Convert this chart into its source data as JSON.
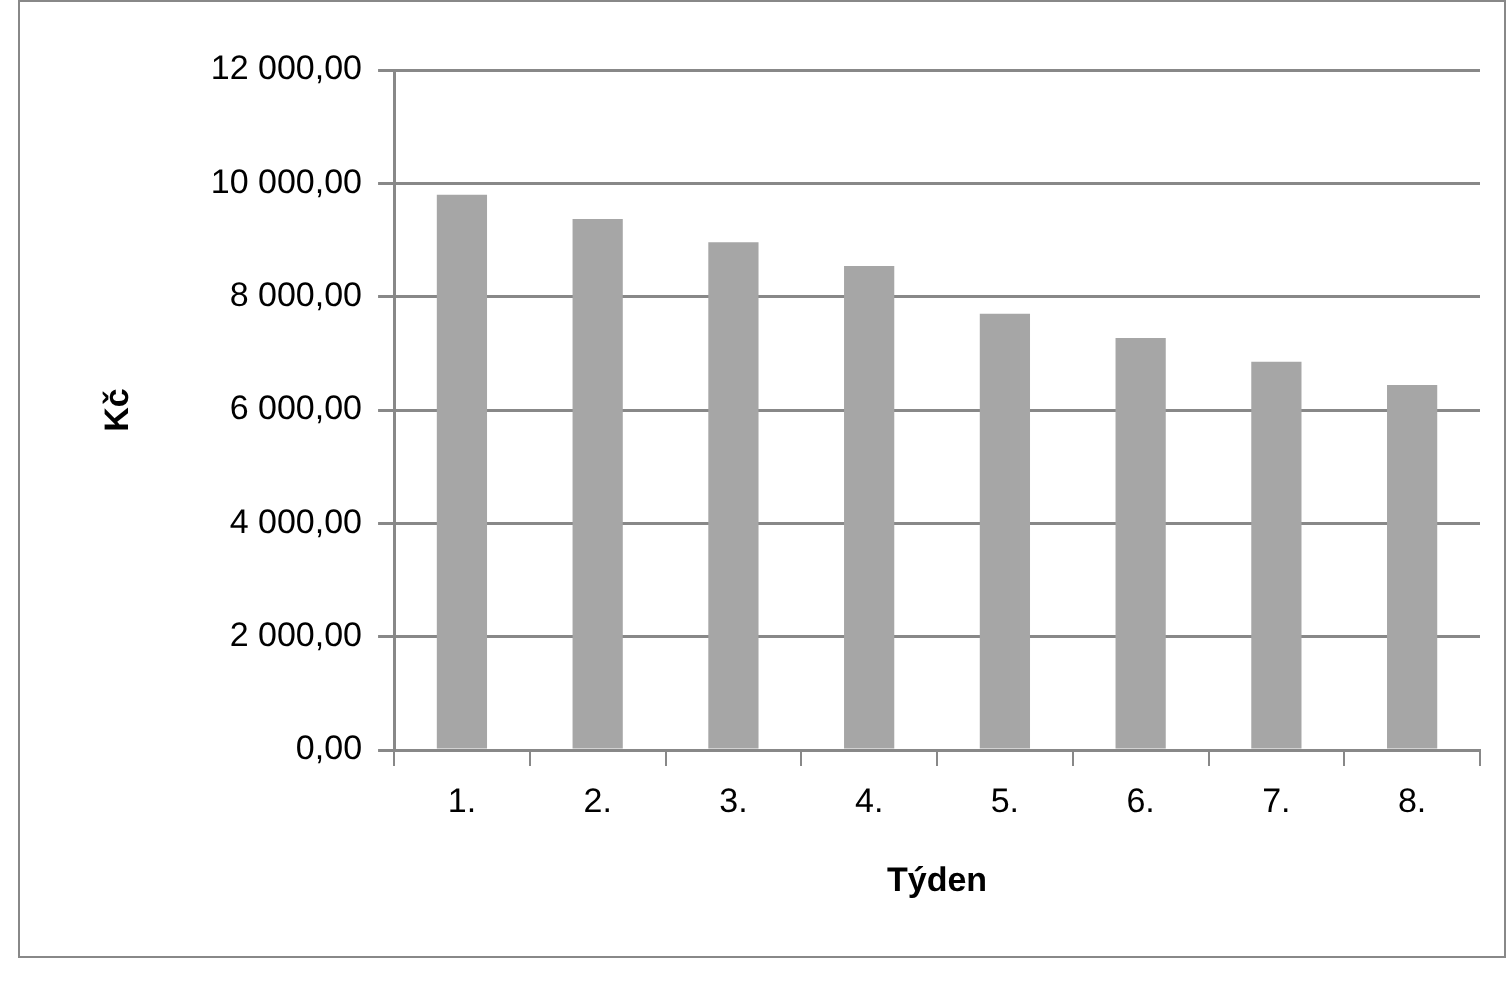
{
  "chart_data": {
    "type": "bar",
    "xlabel": "Týden",
    "ylabel": "Kč",
    "categories": [
      "1.",
      "2.",
      "3.",
      "4.",
      "5.",
      "6.",
      "7.",
      "8."
    ],
    "values": [
      9800,
      9370,
      8960,
      8540,
      7700,
      7270,
      6850,
      6440
    ],
    "color": "#a6a6a6",
    "ylim": [
      0,
      12000
    ],
    "yticks": [
      {
        "value": 0,
        "label": "0,00"
      },
      {
        "value": 2000,
        "label": "2 000,00"
      },
      {
        "value": 4000,
        "label": "4 000,00"
      },
      {
        "value": 6000,
        "label": "6 000,00"
      },
      {
        "value": 8000,
        "label": "8 000,00"
      },
      {
        "value": 10000,
        "label": "10 000,00"
      },
      {
        "value": 12000,
        "label": "12 000,00"
      }
    ],
    "grid": "y",
    "legend": false
  }
}
